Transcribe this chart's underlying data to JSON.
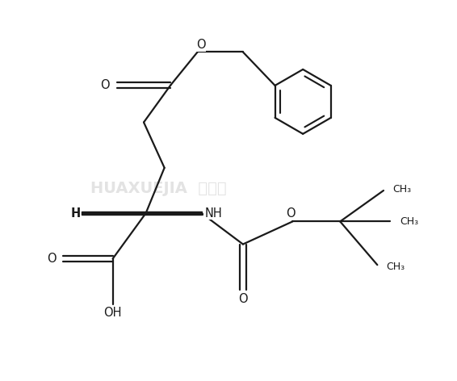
{
  "background_color": "#ffffff",
  "line_color": "#1a1a1a",
  "watermark_color": "#cccccc",
  "bond_lw": 1.6,
  "font_size": 10.5,
  "font_size_small": 9.0,
  "figsize": [
    5.66,
    4.72
  ],
  "dpi": 100,
  "xlim": [
    -1,
    10
  ],
  "ylim": [
    -0.5,
    8.5
  ]
}
